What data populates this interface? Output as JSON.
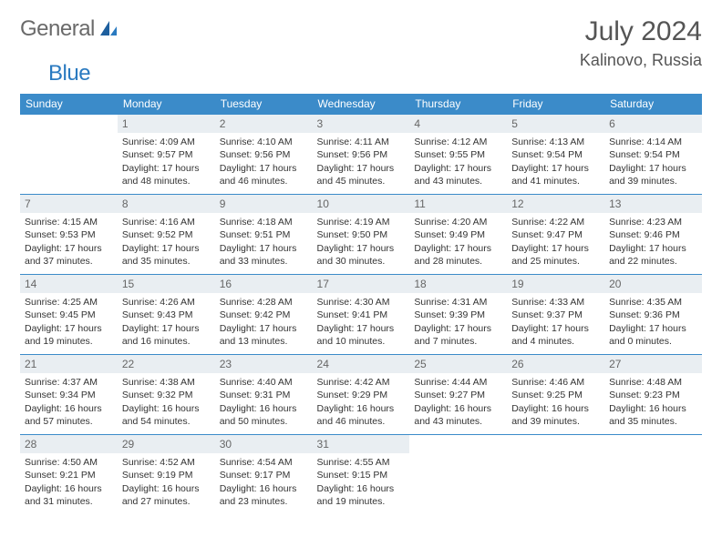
{
  "logo": {
    "part1": "General",
    "part2": "Blue"
  },
  "title": "July 2024",
  "location": "Kalinovo, Russia",
  "colors": {
    "header_bg": "#3b8bc9",
    "header_text": "#ffffff",
    "daynum_bg": "#e9eef2",
    "daynum_text": "#666666",
    "border": "#3b8bc9",
    "logo_gray": "#6a6a6a",
    "logo_blue": "#2a7ac0"
  },
  "weekdays": [
    "Sunday",
    "Monday",
    "Tuesday",
    "Wednesday",
    "Thursday",
    "Friday",
    "Saturday"
  ],
  "start_offset": 1,
  "days": [
    {
      "n": 1,
      "sunrise": "4:09 AM",
      "sunset": "9:57 PM",
      "daylight": "17 hours and 48 minutes."
    },
    {
      "n": 2,
      "sunrise": "4:10 AM",
      "sunset": "9:56 PM",
      "daylight": "17 hours and 46 minutes."
    },
    {
      "n": 3,
      "sunrise": "4:11 AM",
      "sunset": "9:56 PM",
      "daylight": "17 hours and 45 minutes."
    },
    {
      "n": 4,
      "sunrise": "4:12 AM",
      "sunset": "9:55 PM",
      "daylight": "17 hours and 43 minutes."
    },
    {
      "n": 5,
      "sunrise": "4:13 AM",
      "sunset": "9:54 PM",
      "daylight": "17 hours and 41 minutes."
    },
    {
      "n": 6,
      "sunrise": "4:14 AM",
      "sunset": "9:54 PM",
      "daylight": "17 hours and 39 minutes."
    },
    {
      "n": 7,
      "sunrise": "4:15 AM",
      "sunset": "9:53 PM",
      "daylight": "17 hours and 37 minutes."
    },
    {
      "n": 8,
      "sunrise": "4:16 AM",
      "sunset": "9:52 PM",
      "daylight": "17 hours and 35 minutes."
    },
    {
      "n": 9,
      "sunrise": "4:18 AM",
      "sunset": "9:51 PM",
      "daylight": "17 hours and 33 minutes."
    },
    {
      "n": 10,
      "sunrise": "4:19 AM",
      "sunset": "9:50 PM",
      "daylight": "17 hours and 30 minutes."
    },
    {
      "n": 11,
      "sunrise": "4:20 AM",
      "sunset": "9:49 PM",
      "daylight": "17 hours and 28 minutes."
    },
    {
      "n": 12,
      "sunrise": "4:22 AM",
      "sunset": "9:47 PM",
      "daylight": "17 hours and 25 minutes."
    },
    {
      "n": 13,
      "sunrise": "4:23 AM",
      "sunset": "9:46 PM",
      "daylight": "17 hours and 22 minutes."
    },
    {
      "n": 14,
      "sunrise": "4:25 AM",
      "sunset": "9:45 PM",
      "daylight": "17 hours and 19 minutes."
    },
    {
      "n": 15,
      "sunrise": "4:26 AM",
      "sunset": "9:43 PM",
      "daylight": "17 hours and 16 minutes."
    },
    {
      "n": 16,
      "sunrise": "4:28 AM",
      "sunset": "9:42 PM",
      "daylight": "17 hours and 13 minutes."
    },
    {
      "n": 17,
      "sunrise": "4:30 AM",
      "sunset": "9:41 PM",
      "daylight": "17 hours and 10 minutes."
    },
    {
      "n": 18,
      "sunrise": "4:31 AM",
      "sunset": "9:39 PM",
      "daylight": "17 hours and 7 minutes."
    },
    {
      "n": 19,
      "sunrise": "4:33 AM",
      "sunset": "9:37 PM",
      "daylight": "17 hours and 4 minutes."
    },
    {
      "n": 20,
      "sunrise": "4:35 AM",
      "sunset": "9:36 PM",
      "daylight": "17 hours and 0 minutes."
    },
    {
      "n": 21,
      "sunrise": "4:37 AM",
      "sunset": "9:34 PM",
      "daylight": "16 hours and 57 minutes."
    },
    {
      "n": 22,
      "sunrise": "4:38 AM",
      "sunset": "9:32 PM",
      "daylight": "16 hours and 54 minutes."
    },
    {
      "n": 23,
      "sunrise": "4:40 AM",
      "sunset": "9:31 PM",
      "daylight": "16 hours and 50 minutes."
    },
    {
      "n": 24,
      "sunrise": "4:42 AM",
      "sunset": "9:29 PM",
      "daylight": "16 hours and 46 minutes."
    },
    {
      "n": 25,
      "sunrise": "4:44 AM",
      "sunset": "9:27 PM",
      "daylight": "16 hours and 43 minutes."
    },
    {
      "n": 26,
      "sunrise": "4:46 AM",
      "sunset": "9:25 PM",
      "daylight": "16 hours and 39 minutes."
    },
    {
      "n": 27,
      "sunrise": "4:48 AM",
      "sunset": "9:23 PM",
      "daylight": "16 hours and 35 minutes."
    },
    {
      "n": 28,
      "sunrise": "4:50 AM",
      "sunset": "9:21 PM",
      "daylight": "16 hours and 31 minutes."
    },
    {
      "n": 29,
      "sunrise": "4:52 AM",
      "sunset": "9:19 PM",
      "daylight": "16 hours and 27 minutes."
    },
    {
      "n": 30,
      "sunrise": "4:54 AM",
      "sunset": "9:17 PM",
      "daylight": "16 hours and 23 minutes."
    },
    {
      "n": 31,
      "sunrise": "4:55 AM",
      "sunset": "9:15 PM",
      "daylight": "16 hours and 19 minutes."
    }
  ],
  "labels": {
    "sunrise": "Sunrise:",
    "sunset": "Sunset:",
    "daylight": "Daylight:"
  }
}
